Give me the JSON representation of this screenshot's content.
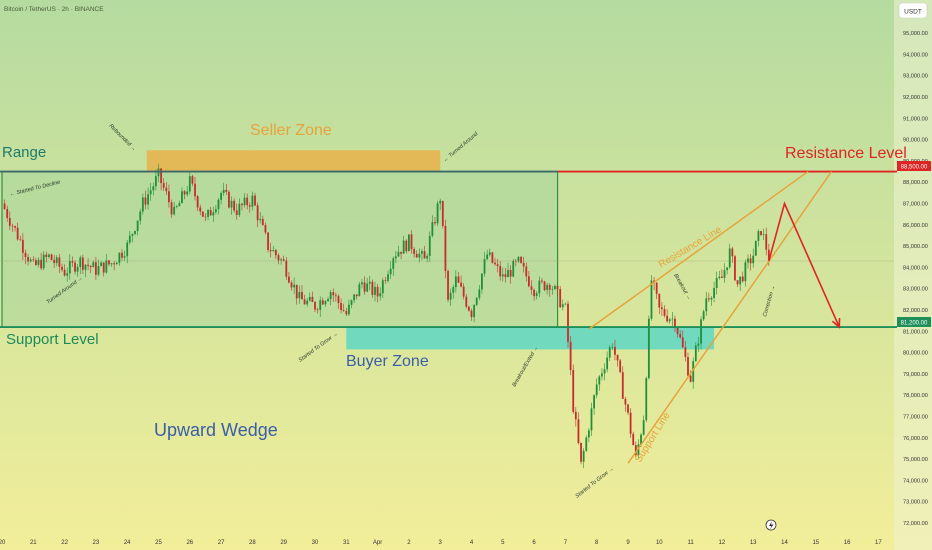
{
  "header": {
    "symbol_line": "Bitcoin / TetherUS · 2h · BINANCE",
    "currency": "USDT"
  },
  "colors": {
    "bg_top": "#b5dba0",
    "bg_bottom": "#f2ee9a",
    "range_box": "#a7d69c",
    "range_border": "#2f8f45",
    "seller_zone": "#e8b04a",
    "buyer_zone": "#5ed6c3",
    "resistance": "#e02424",
    "support": "#1f8f5a",
    "wedge": "#e8a33a",
    "projection": "#e02424",
    "candle_up": "#1e8f3a",
    "candle_down": "#c82b2b",
    "text_dark_teal": "#1d7a6a",
    "text_blue": "#3a5ea8"
  },
  "chart_data": {
    "type": "candlestick",
    "y_axis": {
      "ylim": [
        71500,
        96500
      ],
      "ticks": [
        72000,
        73000,
        74000,
        75000,
        76000,
        77000,
        78000,
        79000,
        80000,
        81000,
        82000,
        83000,
        84000,
        85000,
        86000,
        87000,
        88000,
        89000,
        90000,
        91000,
        92000,
        93000,
        94000,
        95000
      ],
      "tick_labels": [
        "72,000.00",
        "73,000.00",
        "74,000.00",
        "75,000.00",
        "76,000.00",
        "77,000.00",
        "78,000.00",
        "79,000.00",
        "80,000.00",
        "81,000.00",
        "82,000.00",
        "83,000.00",
        "84,000.00",
        "85,000.00",
        "86,000.00",
        "87,000.00",
        "88,000.00",
        "89,000.00",
        "90,000.00",
        "91,000.00",
        "92,000.00",
        "93,000.00",
        "94,000.00",
        "95,000.00"
      ]
    },
    "x_axis": {
      "tick_labels": [
        "20",
        "21",
        "22",
        "23",
        "24",
        "25",
        "26",
        "27",
        "28",
        "29",
        "30",
        "31",
        "Apr",
        "2",
        "3",
        "4",
        "5",
        "6",
        "7",
        "8",
        "9",
        "10",
        "11",
        "12",
        "13",
        "14",
        "15",
        "16",
        "17"
      ],
      "tick_positions": [
        "2025-03-20",
        "2025-03-21",
        "2025-03-22",
        "2025-03-23",
        "2025-03-24",
        "2025-03-25",
        "2025-03-26",
        "2025-03-27",
        "2025-03-28",
        "2025-03-29",
        "2025-03-30",
        "2025-03-31",
        "2025-04-01",
        "2025-04-02",
        "2025-04-03",
        "2025-04-04",
        "2025-04-05",
        "2025-04-06",
        "2025-04-07",
        "2025-04-08",
        "2025-04-09",
        "2025-04-10",
        "2025-04-11",
        "2025-04-12",
        "2025-04-13",
        "2025-04-14",
        "2025-04-15",
        "2025-04-16",
        "2025-04-17"
      ]
    },
    "price_path": [
      [
        "2025-03-20",
        87000
      ],
      [
        "2025-03-20T12:00",
        85500
      ],
      [
        "2025-03-21",
        84000
      ],
      [
        "2025-03-21T12:00",
        84500
      ],
      [
        "2025-03-22",
        83800
      ],
      [
        "2025-03-22T12:00",
        84300
      ],
      [
        "2025-03-23",
        83900
      ],
      [
        "2025-03-23T12:00",
        84200
      ],
      [
        "2025-03-24",
        85000
      ],
      [
        "2025-03-24T12:00",
        87000
      ],
      [
        "2025-03-25",
        88300
      ],
      [
        "2025-03-25T12:00",
        86500
      ],
      [
        "2025-03-26",
        88000
      ],
      [
        "2025-03-26T12:00",
        86200
      ],
      [
        "2025-03-27",
        87500
      ],
      [
        "2025-03-27T12:00",
        86700
      ],
      [
        "2025-03-28",
        87200
      ],
      [
        "2025-03-28T12:00",
        85000
      ],
      [
        "2025-03-29",
        84200
      ],
      [
        "2025-03-29T12:00",
        82500
      ],
      [
        "2025-03-30",
        82200
      ],
      [
        "2025-03-30T12:00",
        82900
      ],
      [
        "2025-03-31",
        81800
      ],
      [
        "2025-03-31T12:00",
        83300
      ],
      [
        "2025-04-01",
        82700
      ],
      [
        "2025-04-01T12:00",
        84600
      ],
      [
        "2025-04-02",
        85200
      ],
      [
        "2025-04-02T12:00",
        84300
      ],
      [
        "2025-04-03",
        87300
      ],
      [
        "2025-04-03T06:00",
        82300
      ],
      [
        "2025-04-03T12:00",
        83400
      ],
      [
        "2025-04-04",
        81900
      ],
      [
        "2025-04-04T12:00",
        84600
      ],
      [
        "2025-04-05",
        83500
      ],
      [
        "2025-04-05T12:00",
        84200
      ],
      [
        "2025-04-06",
        83000
      ],
      [
        "2025-04-06T12:00",
        83300
      ],
      [
        "2025-04-07",
        82000
      ],
      [
        "2025-04-07T06:00",
        77500
      ],
      [
        "2025-04-07T12:00",
        74700
      ],
      [
        "2025-04-08",
        78500
      ],
      [
        "2025-04-08T12:00",
        80500
      ],
      [
        "2025-04-09",
        77000
      ],
      [
        "2025-04-09T06:00",
        75000
      ],
      [
        "2025-04-09T12:00",
        77000
      ],
      [
        "2025-04-09T18:00",
        83400
      ],
      [
        "2025-04-10",
        82000
      ],
      [
        "2025-04-10T12:00",
        81500
      ],
      [
        "2025-04-11",
        78800
      ],
      [
        "2025-04-11T12:00",
        82600
      ],
      [
        "2025-04-12",
        83500
      ],
      [
        "2025-04-12T06:00",
        84700
      ],
      [
        "2025-04-12T12:00",
        83200
      ],
      [
        "2025-04-13",
        84600
      ],
      [
        "2025-04-13T06:00",
        85800
      ],
      [
        "2025-04-13T12:00",
        84500
      ]
    ],
    "horizontal_levels": [
      {
        "name": "Resistance Level",
        "value": 88500,
        "label": "88,500.00"
      },
      {
        "name": "Support Level",
        "value": 81200,
        "label": "81,200.00"
      }
    ],
    "zones": [
      {
        "name": "Seller Zone",
        "y_low": 88500,
        "y_high": 89500,
        "x_start": "2025-03-24T15:00",
        "x_end": "2025-04-03T00:00"
      },
      {
        "name": "Buyer Zone",
        "y_low": 80150,
        "y_high": 81200,
        "x_start": "2025-03-31T00:00",
        "x_end": "2025-04-11T18:00"
      },
      {
        "name": "Range",
        "y_low": 81200,
        "y_high": 88500,
        "x_start": "2025-03-20T00:00",
        "x_end": "2025-04-06T18:00"
      }
    ],
    "trend_lines": [
      {
        "name": "Resistance Line",
        "from": [
          "2025-04-07T18:00",
          81100
        ],
        "to": [
          "2025-04-14T18:00",
          88500
        ]
      },
      {
        "name": "Support Line",
        "from": [
          "2025-04-09T00:00",
          74800
        ],
        "to": [
          "2025-04-15T12:00",
          88500
        ]
      }
    ],
    "projection": [
      [
        "2025-04-13T12:00",
        84300
      ],
      [
        "2025-04-14T00:00",
        87000
      ],
      [
        "2025-04-15T18:00",
        81200
      ]
    ],
    "last_price": 84300,
    "annotations": [
      {
        "text": "Range"
      },
      {
        "text": "Seller Zone"
      },
      {
        "text": "Buyer Zone"
      },
      {
        "text": "Support Level"
      },
      {
        "text": "Resistance Level"
      },
      {
        "text": "Upward Wedge"
      },
      {
        "text": "Resistance Line"
      },
      {
        "text": "Support Line"
      },
      {
        "text": "Rebounded →"
      },
      {
        "text": "← Turned Around"
      },
      {
        "text": "← Started To Decline"
      },
      {
        "text": "Turned Around →"
      },
      {
        "text": "Started To Grow →"
      },
      {
        "text": "Breakout/Exited →"
      },
      {
        "text": "Started To Grow →"
      },
      {
        "text": "Breakout →"
      },
      {
        "text": "Correction →"
      }
    ]
  }
}
